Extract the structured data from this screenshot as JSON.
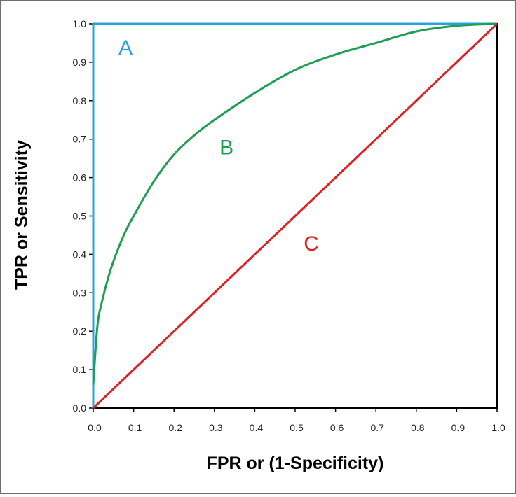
{
  "chart_data": {
    "type": "line",
    "title": "",
    "xlabel": "FPR or (1-Specificity)",
    "ylabel": "TPR or Sensitivity",
    "xlim": [
      0,
      1
    ],
    "ylim": [
      0,
      1
    ],
    "x_ticks": [
      "0.0",
      "0.1",
      "0.2",
      "0.3",
      "0.4",
      "0.5",
      "0.6",
      "0.7",
      "0.8",
      "0.9",
      "1.0"
    ],
    "y_ticks": [
      "0.0",
      "0.1",
      "0.2",
      "0.3",
      "0.4",
      "0.5",
      "0.6",
      "0.7",
      "0.8",
      "0.9",
      "1.0"
    ],
    "grid": false,
    "legend": "none",
    "series": [
      {
        "name": "A",
        "color": "#29a3dc",
        "x": [
          0.0,
          0.0,
          1.0
        ],
        "y": [
          0.0,
          1.0,
          1.0
        ],
        "label_at": {
          "x": 0.08,
          "y": 0.94
        }
      },
      {
        "name": "B",
        "color": "#1f9e53",
        "x": [
          0.0,
          0.01,
          0.02,
          0.04,
          0.06,
          0.08,
          0.1,
          0.15,
          0.2,
          0.25,
          0.3,
          0.4,
          0.5,
          0.6,
          0.7,
          0.8,
          0.9,
          1.0
        ],
        "y": [
          0.06,
          0.21,
          0.27,
          0.35,
          0.41,
          0.46,
          0.5,
          0.59,
          0.66,
          0.71,
          0.75,
          0.82,
          0.88,
          0.92,
          0.95,
          0.98,
          0.995,
          1.0
        ],
        "label_at": {
          "x": 0.33,
          "y": 0.68
        }
      },
      {
        "name": "C",
        "color": "#e02020",
        "x": [
          0.0,
          1.0
        ],
        "y": [
          0.0,
          1.0
        ],
        "label_at": {
          "x": 0.54,
          "y": 0.43
        }
      }
    ]
  }
}
